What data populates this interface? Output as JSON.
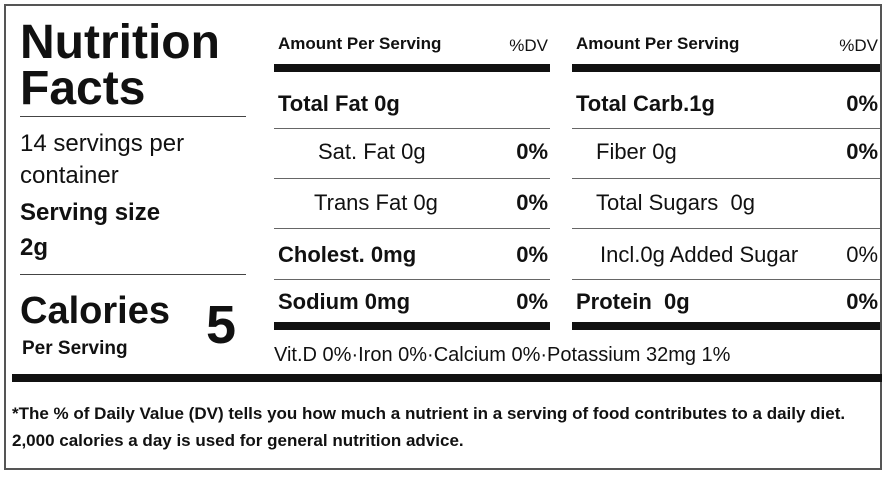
{
  "header": {
    "title": "Nutrition Facts",
    "servings": "14 servings per container",
    "serving_size_label": "Serving size",
    "serving_size": "2g",
    "calories_label": "Calories",
    "calories_sub": "Per Serving",
    "calories": "5"
  },
  "columns": [
    {
      "amount_header": "Amount Per Serving",
      "dv_header": "%DV",
      "rows": [
        {
          "label": "Total Fat 0g"
        },
        {
          "label": "Sat. Fat 0g",
          "dv": "0%"
        },
        {
          "label": "Trans Fat 0g",
          "dv": "0%"
        },
        {
          "label": "Cholest. 0mg",
          "dv": "0%"
        },
        {
          "label": "Sodium 0mg",
          "dv": "0%"
        }
      ]
    },
    {
      "amount_header": "Amount Per Serving",
      "dv_header": "%DV",
      "rows": [
        {
          "label": "Total Carb.1g",
          "dv": "0%"
        },
        {
          "label": "Fiber 0g",
          "dv": "0%"
        },
        {
          "label": "Total Sugars  0g"
        },
        {
          "label": "Incl.0g Added Sugar",
          "dv": "0%"
        },
        {
          "label": "Protein  0g",
          "dv": "0%"
        }
      ]
    }
  ],
  "vitamins": "Vit.D 0%·Iron 0%·Calcium 0%·Potassium 32mg 1%",
  "footnote": "*The % of Daily Value (DV) tells you how much a nutrient in a serving of food contributes to a daily diet. 2,000 calories a day is used for general nutrition advice."
}
